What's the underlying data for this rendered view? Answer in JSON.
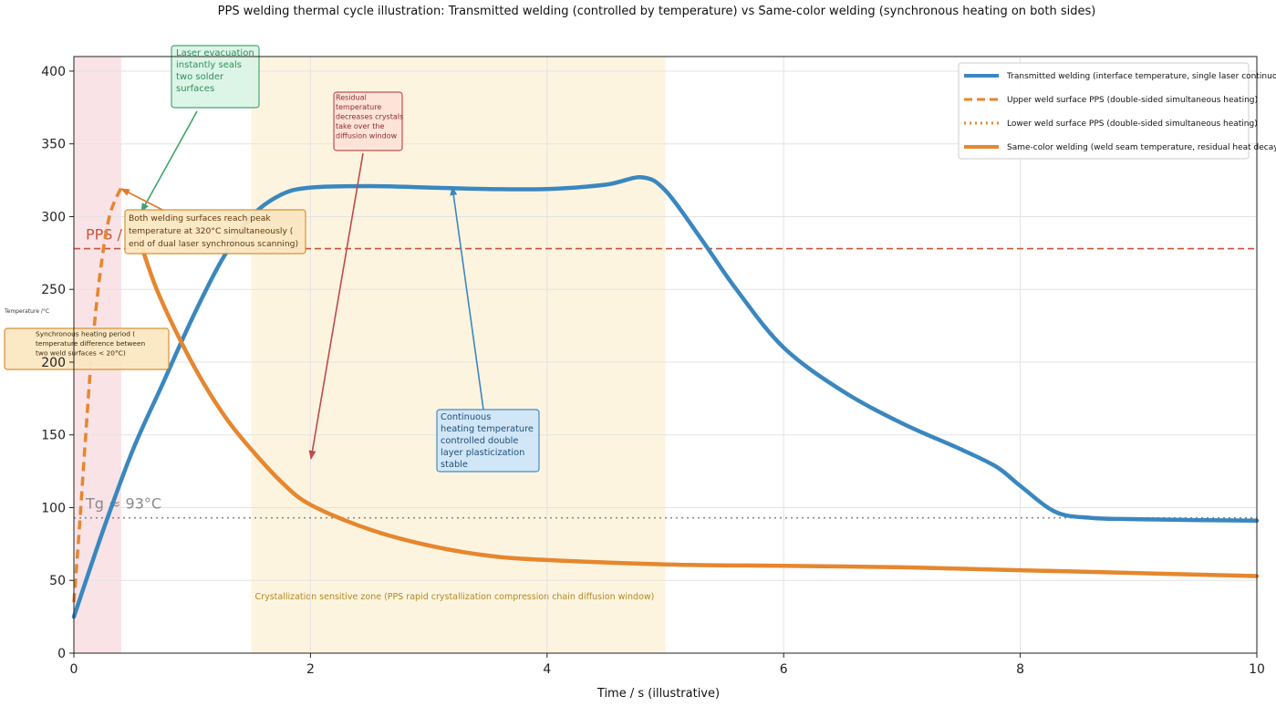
{
  "chart_data": {
    "type": "line",
    "title": "PPS welding thermal cycle illustration: Transmitted welding (controlled by temperature) vs Same-color welding (synchronous heating on both sides)",
    "xlabel": "Time / s (illustrative)",
    "ylabel": "Temperature /°C",
    "xlim": [
      0,
      10
    ],
    "ylim": [
      0,
      410
    ],
    "xticks": [
      0,
      2,
      4,
      6,
      8,
      10
    ],
    "yticks": [
      0,
      50,
      100,
      150,
      200,
      250,
      300,
      350,
      400
    ],
    "grid": true,
    "legend_position": "top-right",
    "series": [
      {
        "name": "Transmitted welding (interface temperature, single laser continuous)",
        "color": "#3a87bf",
        "style": "solid",
        "points": [
          [
            0,
            25
          ],
          [
            0.25,
            85
          ],
          [
            0.5,
            140
          ],
          [
            0.75,
            185
          ],
          [
            1.0,
            230
          ],
          [
            1.25,
            270
          ],
          [
            1.5,
            300
          ],
          [
            1.75,
            315
          ],
          [
            2.0,
            320
          ],
          [
            2.5,
            321
          ],
          [
            3.0,
            320
          ],
          [
            3.5,
            319
          ],
          [
            4.0,
            319
          ],
          [
            4.5,
            322
          ],
          [
            4.8,
            327
          ],
          [
            5.0,
            318
          ],
          [
            5.3,
            285
          ],
          [
            5.6,
            250
          ],
          [
            6.0,
            210
          ],
          [
            6.5,
            180
          ],
          [
            7.0,
            158
          ],
          [
            7.5,
            140
          ],
          [
            7.8,
            128
          ],
          [
            8.0,
            115
          ],
          [
            8.3,
            97
          ],
          [
            8.6,
            93
          ],
          [
            9.0,
            92
          ],
          [
            10.0,
            91
          ]
        ]
      },
      {
        "name": "Upper weld surface PPS (double-sided simultaneous heating)",
        "color": "#e6862e",
        "style": "dashed",
        "points": [
          [
            0,
            35
          ],
          [
            0.05,
            90
          ],
          [
            0.1,
            150
          ],
          [
            0.15,
            205
          ],
          [
            0.22,
            260
          ],
          [
            0.3,
            300
          ],
          [
            0.4,
            320
          ]
        ]
      },
      {
        "name": "Lower weld surface PPS (double-sided simultaneous heating)",
        "color": "#e6862e",
        "style": "dotted",
        "points": []
      },
      {
        "name": "Same-color welding (weld seam temperature, residual heat decay)",
        "color": "#e6862e",
        "style": "solid",
        "points": [
          [
            0.55,
            285
          ],
          [
            0.7,
            250
          ],
          [
            0.9,
            215
          ],
          [
            1.1,
            185
          ],
          [
            1.3,
            160
          ],
          [
            1.5,
            140
          ],
          [
            1.75,
            118
          ],
          [
            2.0,
            102
          ],
          [
            2.5,
            85
          ],
          [
            3.0,
            74
          ],
          [
            3.5,
            67
          ],
          [
            4.0,
            64
          ],
          [
            5.0,
            61
          ],
          [
            6.0,
            60
          ],
          [
            7.0,
            59
          ],
          [
            8.0,
            57
          ],
          [
            9.0,
            55
          ],
          [
            10.0,
            53
          ]
        ]
      }
    ],
    "reference_lines": [
      {
        "label": "PPS Tm",
        "visible_text": "PPS /",
        "value": 278,
        "color": "#c9523a",
        "style": "dashed"
      },
      {
        "label": "Tg ≈ 93°C",
        "visible_text": "Tg ≈ 93°C",
        "value": 93,
        "color": "#8a8a8a",
        "style": "dotted"
      }
    ],
    "regions": [
      {
        "x": [
          0,
          0.4
        ],
        "color": "#f9e3e6",
        "label": ""
      },
      {
        "x": [
          1.5,
          5.0
        ],
        "color": "#fdf4e0",
        "label": "Crystallization sensitive zone (PPS rapid crystallization compression chain diffusion window)"
      }
    ],
    "annotations": [
      {
        "id": "laser",
        "text_lines": [
          "Laser evacuation",
          "instantly seals",
          "two solder",
          "surfaces"
        ],
        "fill": "#dcf5e6",
        "stroke": "#3ea36b",
        "text_color": "#2d8f58"
      },
      {
        "id": "residual",
        "text_lines": [
          "Residual",
          "temperature",
          "decreases crystals",
          "take over the",
          "diffusion window"
        ],
        "fill": "#fde3d8",
        "stroke": "#c0494a",
        "text_color": "#8b2f2f"
      },
      {
        "id": "peak",
        "text_lines": [
          "Both welding surfaces reach peak",
          "temperature at 320°C simultaneously (",
          "end of dual laser synchronous scanning)"
        ],
        "fill": "#fbe7c2",
        "stroke": "#d98b2b",
        "text_color": "#5c3a10"
      },
      {
        "id": "sync",
        "text_lines": [
          "Synchronous heating period (",
          "temperature difference between",
          "two weld surfaces < 20°C)"
        ],
        "fill": "#fbe7c2",
        "stroke": "#d98b2b",
        "text_color": "#3a2a10"
      },
      {
        "id": "continuous",
        "text_lines": [
          "Continuous",
          "heating temperature",
          "controlled double",
          "layer plasticization",
          "stable"
        ],
        "fill": "#cfe6f8",
        "stroke": "#3a87bf",
        "text_color": "#1f4e78"
      }
    ]
  }
}
